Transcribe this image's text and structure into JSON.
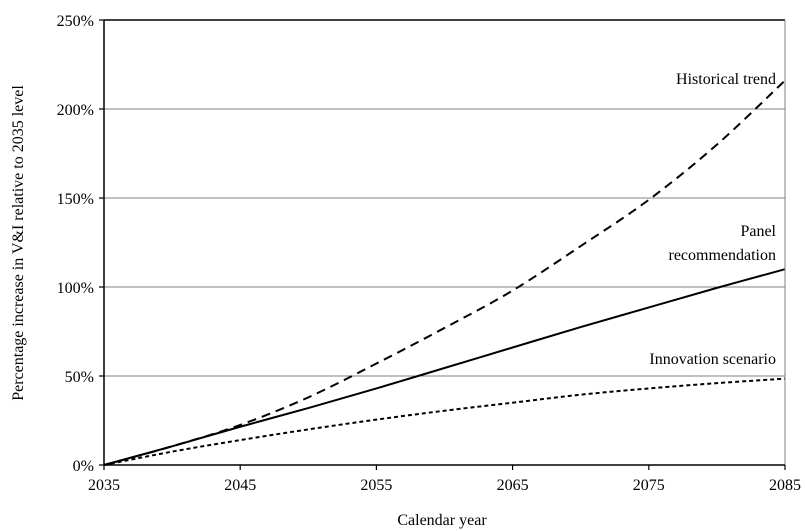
{
  "chart_data": {
    "type": "line",
    "title": "",
    "xlabel": "Calendar year",
    "ylabel": "Percentage increase in V&I relative to 2035 level",
    "xlim": [
      2035,
      2085
    ],
    "ylim": [
      0,
      250
    ],
    "x_ticks": [
      "2035",
      "2045",
      "2055",
      "2065",
      "2075",
      "2085"
    ],
    "y_ticks": [
      "0%",
      "50%",
      "100%",
      "150%",
      "200%",
      "250%"
    ],
    "grid": "horizontal",
    "legend": "none",
    "x": [
      2035,
      2040,
      2045,
      2050,
      2055,
      2060,
      2065,
      2070,
      2075,
      2080,
      2085
    ],
    "series": [
      {
        "label": "Historical trend",
        "style": "dashed",
        "color": "#000000",
        "values": [
          0,
          10.5,
          22.5,
          38,
          57,
          77,
          98,
          123,
          149,
          180,
          216
        ]
      },
      {
        "label": "Panel recommendation",
        "style": "solid",
        "color": "#000000",
        "values": [
          0,
          10.5,
          21.5,
          32,
          43,
          54.5,
          66,
          77.5,
          88.5,
          99.5,
          110
        ]
      },
      {
        "label": "Innovation scenario",
        "style": "dotted",
        "color": "#000000",
        "values": [
          0,
          7.5,
          14,
          20,
          25.5,
          30.5,
          35,
          39.5,
          43,
          46,
          48.5
        ]
      }
    ],
    "annotations": [
      "Historical trend",
      "Panel recommendation",
      "Innovation scenario"
    ]
  }
}
